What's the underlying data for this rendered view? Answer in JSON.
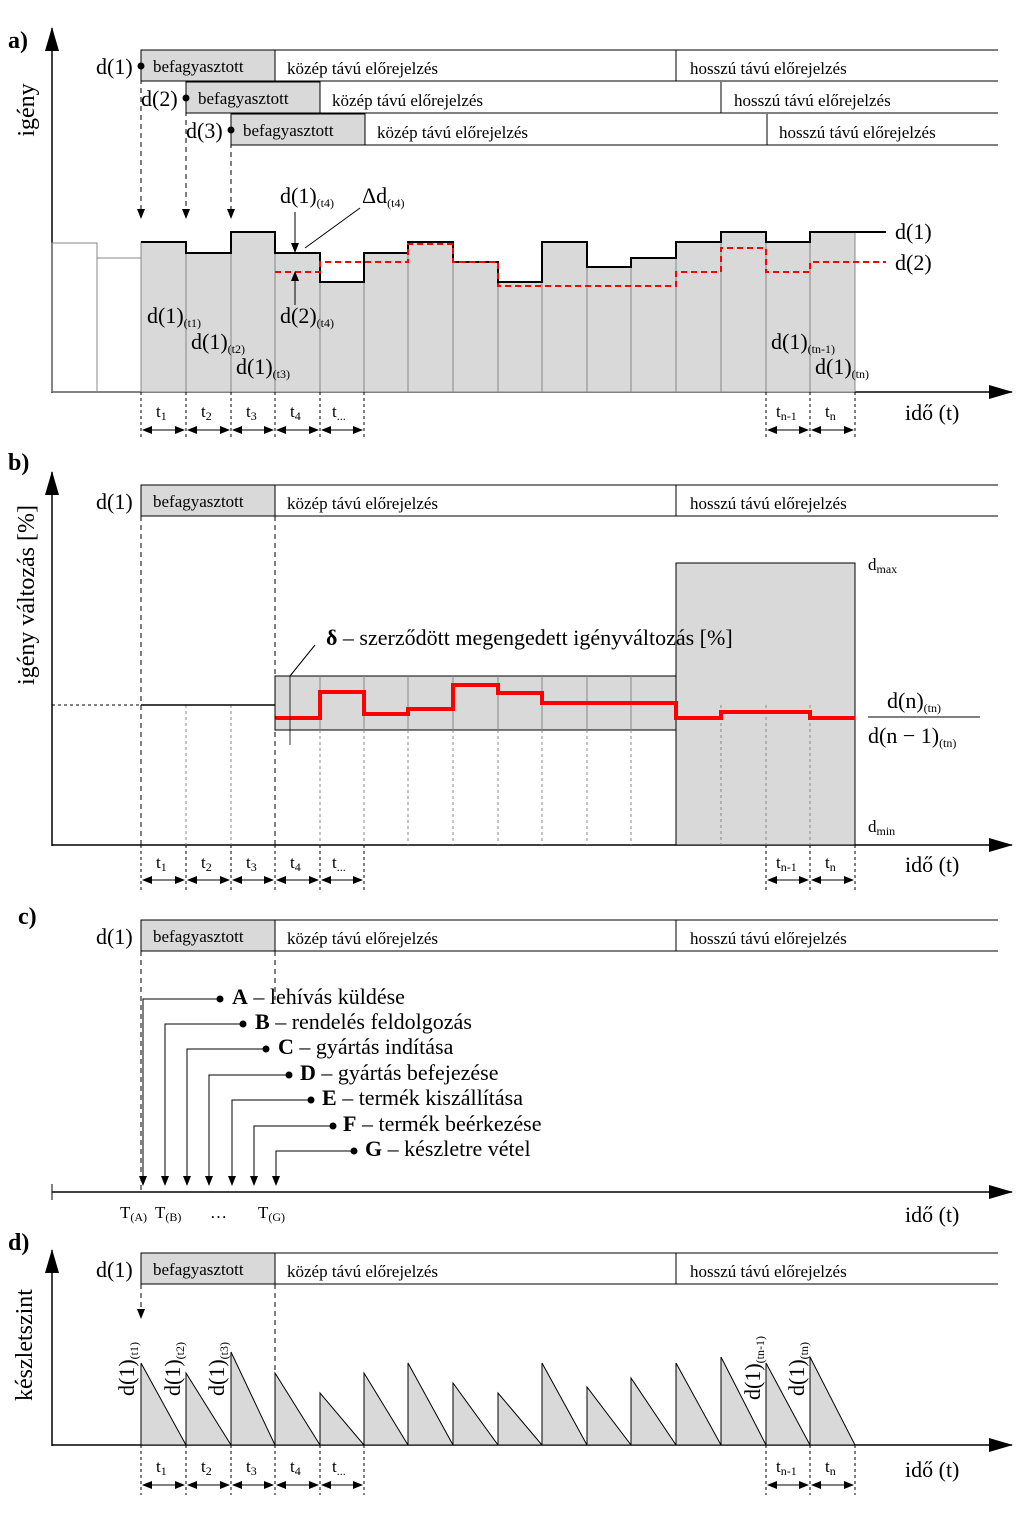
{
  "panels": {
    "a": "a)",
    "b": "b)",
    "c": "c)",
    "d": "d)"
  },
  "horizon": {
    "frozen": "befagyasztott",
    "mid": "közép távú előrejelzés",
    "long": "hosszú távú előrejelzés"
  },
  "labels": {
    "d1": "d(1)",
    "d2": "d(2)",
    "d3": "d(3)",
    "d": "d(1)",
    "sub_t1": "(t1)",
    "sub_t2": "(t2)",
    "sub_t3": "(t3)",
    "sub_t4": "(t4)",
    "sub_tn1": "(tn-1)",
    "sub_tn": "(tn)",
    "delta_d": "Δd",
    "time_axis": "idő (t)",
    "t1": "t",
    "t2": "t",
    "t3": "t",
    "t4": "t",
    "tdots": "t",
    "s1": "1",
    "s2": "2",
    "s3": "3",
    "s4": "4",
    "sdots": "...",
    "sn1": "n-1",
    "sn": "n",
    "tn1": "t",
    "tn": "t"
  },
  "axes": {
    "a": "igény",
    "b": "igény változás [%]",
    "d": "készletszint"
  },
  "b": {
    "dmax": "d",
    "dmax_sub": "max",
    "dmin": "d",
    "dmin_sub": "min",
    "delta": "δ",
    "delta_text": " – szerződött megengedett igényváltozás [%]",
    "ratio_num": "d(n)",
    "ratio_num_sub": "(tn)",
    "ratio_den": "d(n − 1)",
    "ratio_den_sub": "(tn)"
  },
  "c": {
    "steps": [
      {
        "letter": "A",
        "text": " – lehívás küldése"
      },
      {
        "letter": "B",
        "text": " – rendelés feldolgozás"
      },
      {
        "letter": "C",
        "text": " – gyártás indítása"
      },
      {
        "letter": "D",
        "text": " – gyártás befejezése"
      },
      {
        "letter": "E",
        "text": " – termék kiszállítása"
      },
      {
        "letter": "F",
        "text": " – termék beérkezése"
      },
      {
        "letter": "G",
        "text": " – készletre vétel"
      }
    ],
    "ta": "T",
    "ta_sub": "(A)",
    "tb": "T",
    "tb_sub": "(B)",
    "dots": "…",
    "tg": "T",
    "tg_sub": "(G)"
  },
  "colors": {
    "fill": "#d9d9d9",
    "red": "#ff0000"
  }
}
